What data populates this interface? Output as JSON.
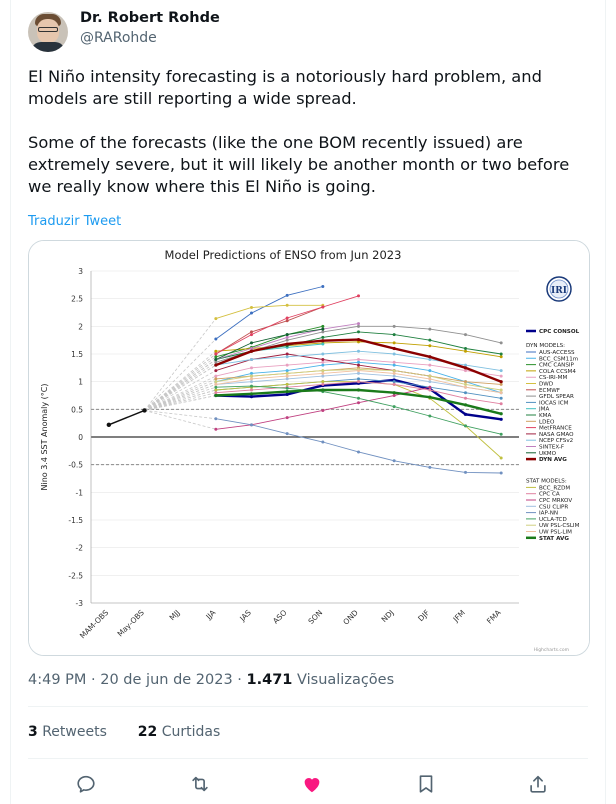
{
  "author": {
    "name": "Dr. Robert Rohde",
    "handle": "@RARohde"
  },
  "tweet": {
    "paragraphs": [
      "El Niño intensity forecasting is a notoriously hard problem, and models are still reporting a wide spread.",
      "Some of the forecasts (like the one BOM recently issued) are extremely severe, but it will likely be another month or two before we really know where this El Niño is going."
    ],
    "translate_label": "Traduzir Tweet"
  },
  "meta": {
    "time": "4:49 PM · 20 de jun de 2023 · ",
    "views_count": "1.471",
    "views_label": " Visualizações"
  },
  "stats": {
    "retweets_count": "3",
    "retweets_label": " Retweets",
    "likes_count": "22",
    "likes_label": " Curtidas"
  },
  "icons": {
    "reply": "reply-icon",
    "retweet": "retweet-icon",
    "like": "heart-icon",
    "bookmark": "bookmark-icon",
    "share": "share-icon"
  },
  "colors": {
    "like": "#f91880",
    "link": "#1d9bf0",
    "dyn_avg": "#8b0000",
    "stat_avg": "#1a7a1a"
  },
  "chart_data": {
    "type": "line",
    "title": "Model Predictions of ENSO from Jun 2023",
    "ylabel": "Nino 3.4 SST Anomaly (°C)",
    "ylim": [
      -3,
      3
    ],
    "yticks": [
      "3",
      "2.5",
      "2",
      "1.5",
      "1",
      "0.5",
      "0",
      "-0.5",
      "-1",
      "-1.5",
      "-2",
      "-2.5",
      "-3"
    ],
    "categories": [
      "MAM-OBS",
      "May-OBS",
      "MJJ",
      "JJA",
      "JAS",
      "ASO",
      "SON",
      "OND",
      "NDJ",
      "DJF",
      "JFM",
      "FMA"
    ],
    "logo": "IRI",
    "credit": "Highcharts.com",
    "legend_heading_dyn": "DYN MODELS:",
    "legend_heading_stat": "STAT MODELS:",
    "series": [
      {
        "name": "CPC CONSOL",
        "color": "#00008b",
        "values": [
          null,
          null,
          null,
          0.75,
          0.73,
          0.77,
          0.93,
          0.97,
          1.03,
          0.87,
          0.41,
          0.32
        ]
      },
      {
        "name": "AUS-ACCESS",
        "color": "#3c6fc0",
        "values": [
          null,
          null,
          null,
          1.77,
          2.24,
          2.56,
          2.72,
          null,
          null,
          null,
          null,
          null
        ]
      },
      {
        "name": "BCC_CSM11m",
        "color": "#4ab3e8",
        "values": [
          null,
          null,
          null,
          1.0,
          1.15,
          1.2,
          1.3,
          1.35,
          1.3,
          1.2,
          1.0,
          0.8
        ]
      },
      {
        "name": "CMC CANSIP",
        "color": "#2a8f2a",
        "values": [
          null,
          null,
          null,
          1.45,
          1.62,
          1.85,
          2.0,
          null,
          null,
          null,
          null,
          null
        ]
      },
      {
        "name": "COLA CCSM4",
        "color": "#c0a000",
        "values": [
          null,
          null,
          null,
          1.55,
          1.6,
          1.65,
          1.7,
          1.72,
          1.7,
          1.65,
          1.55,
          1.45
        ]
      },
      {
        "name": "CS-IRI-MM",
        "color": "#e8a0c0",
        "values": [
          null,
          null,
          null,
          1.1,
          1.25,
          1.3,
          1.35,
          1.4,
          1.35,
          1.3,
          1.2,
          1.1
        ]
      },
      {
        "name": "DWD",
        "color": "#d4c040",
        "values": [
          null,
          null,
          null,
          2.14,
          2.34,
          2.38,
          2.38,
          null,
          null,
          null,
          null,
          null
        ]
      },
      {
        "name": "ECMWF",
        "color": "#c05050",
        "values": [
          null,
          null,
          null,
          1.5,
          1.9,
          2.1,
          2.35,
          null,
          null,
          null,
          null,
          null
        ]
      },
      {
        "name": "GFDL SPEAR",
        "color": "#909090",
        "values": [
          null,
          null,
          null,
          1.35,
          1.55,
          1.75,
          1.9,
          2.0,
          2.0,
          1.95,
          1.85,
          1.7
        ]
      },
      {
        "name": "IOCAS ICM",
        "color": "#5090c0",
        "values": [
          null,
          null,
          null,
          0.85,
          0.9,
          0.95,
          1.0,
          1.05,
          1.0,
          0.9,
          0.8,
          0.7
        ]
      },
      {
        "name": "JMA",
        "color": "#40c0c0",
        "values": [
          null,
          null,
          null,
          1.4,
          1.55,
          1.62,
          1.68,
          null,
          null,
          null,
          null,
          null
        ]
      },
      {
        "name": "KMA",
        "color": "#208040",
        "values": [
          null,
          null,
          null,
          1.4,
          1.55,
          1.65,
          1.8,
          1.9,
          1.85,
          1.75,
          1.6,
          1.5
        ]
      },
      {
        "name": "LDEO",
        "color": "#d0a060",
        "values": [
          null,
          null,
          null,
          1.05,
          1.1,
          1.15,
          1.2,
          1.25,
          1.2,
          1.1,
          1.0,
          0.95
        ]
      },
      {
        "name": "MetFRANCE",
        "color": "#e04060",
        "values": [
          null,
          null,
          null,
          1.5,
          1.85,
          2.15,
          2.35,
          2.55,
          null,
          null,
          null,
          null
        ]
      },
      {
        "name": "NASA GMAO",
        "color": "#a02040",
        "values": [
          null,
          null,
          null,
          1.2,
          1.4,
          1.5,
          1.4,
          1.3,
          1.2,
          1.1,
          null,
          null
        ]
      },
      {
        "name": "NCEP CFSv2",
        "color": "#80c0e0",
        "values": [
          null,
          null,
          null,
          1.3,
          1.4,
          1.45,
          1.5,
          1.55,
          1.5,
          1.4,
          1.3,
          1.2
        ]
      },
      {
        "name": "SINTEX-F",
        "color": "#c080c0",
        "values": [
          null,
          null,
          null,
          1.4,
          1.6,
          1.8,
          1.95,
          2.05,
          null,
          null,
          null,
          null
        ]
      },
      {
        "name": "UKMO",
        "color": "#106030",
        "values": [
          null,
          null,
          null,
          1.4,
          1.7,
          1.85,
          1.95,
          null,
          null,
          null,
          null,
          null
        ]
      },
      {
        "name": "DYN AVG",
        "color": "#8b0000",
        "values": [
          null,
          null,
          null,
          1.3,
          1.55,
          1.68,
          1.74,
          1.76,
          1.6,
          1.45,
          1.25,
          1.0
        ]
      },
      {
        "name": "BCC_RZDM",
        "color": "#c0c040",
        "values": [
          null,
          null,
          null,
          0.85,
          0.9,
          0.95,
          1.0,
          1.0,
          0.95,
          0.7,
          0.2,
          -0.38
        ]
      },
      {
        "name": "CPC CA",
        "color": "#e080a0",
        "values": [
          null,
          null,
          null,
          0.8,
          0.85,
          0.9,
          0.95,
          1.0,
          0.95,
          0.85,
          0.7,
          0.6
        ]
      },
      {
        "name": "CPC MRKOV",
        "color": "#c04080",
        "values": [
          null,
          null,
          null,
          0.14,
          0.22,
          0.35,
          0.48,
          0.62,
          0.75,
          0.9,
          null,
          null
        ]
      },
      {
        "name": "CSU CLIPR",
        "color": "#a0c0e0",
        "values": [
          null,
          null,
          null,
          0.95,
          1.0,
          1.05,
          1.1,
          1.15,
          1.1,
          1.0,
          0.9,
          0.8
        ]
      },
      {
        "name": "IAP-NN",
        "color": "#7090c0",
        "values": [
          null,
          null,
          null,
          0.33,
          0.22,
          0.06,
          -0.09,
          -0.27,
          -0.43,
          -0.55,
          -0.64,
          -0.65
        ]
      },
      {
        "name": "UCLA-TCD",
        "color": "#40a060",
        "values": [
          null,
          null,
          null,
          0.9,
          0.92,
          0.88,
          0.82,
          0.7,
          0.55,
          0.38,
          0.2,
          0.05
        ]
      },
      {
        "name": "UW PSL-CSLIM",
        "color": "#d0d080",
        "values": [
          null,
          null,
          null,
          1.0,
          1.1,
          1.15,
          1.2,
          1.22,
          1.2,
          1.1,
          0.95,
          0.85
        ]
      },
      {
        "name": "UW PSL-LIM",
        "color": "#f0c0a0",
        "values": [
          null,
          null,
          null,
          0.95,
          1.05,
          1.1,
          1.15,
          1.2,
          1.15,
          1.05,
          0.9,
          0.8
        ]
      },
      {
        "name": "STAT AVG",
        "color": "#1a7a1a",
        "values": [
          null,
          null,
          null,
          0.75,
          0.78,
          0.82,
          0.85,
          0.85,
          0.8,
          0.72,
          0.58,
          0.42
        ]
      }
    ],
    "obs": {
      "name": "OBS",
      "color": "#111111",
      "values": [
        0.22,
        0.48
      ]
    },
    "reference_lines": [
      0.5,
      -0.5
    ]
  }
}
